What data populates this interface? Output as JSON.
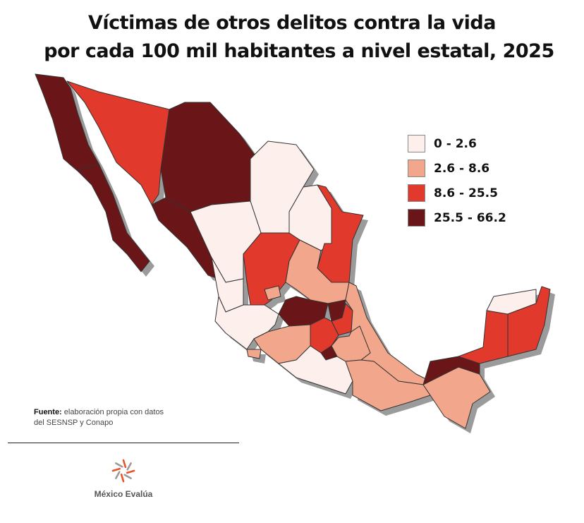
{
  "title": {
    "line1": "Víctimas de otros delitos contra la vida",
    "line2": "por cada 100 mil habitantes a nivel estatal, 2025"
  },
  "legend": {
    "bins": [
      {
        "label": "0 - 2.6",
        "color": "#fdf0ec"
      },
      {
        "label": "2.6 - 8.6",
        "color": "#f2a78c"
      },
      {
        "label": "8.6 - 25.5",
        "color": "#e2392d"
      },
      {
        "label": "25.5 - 66.2",
        "color": "#6a1517"
      }
    ]
  },
  "state_classes": {
    "baja-california": 3,
    "baja-california-sur": 3,
    "sonora": 2,
    "chihuahua": 3,
    "sinaloa": 3,
    "coahuila": 0,
    "nuevo-leon": 0,
    "tamaulipas": 2,
    "durango": 0,
    "zacatecas": 2,
    "san-luis-potosi": 1,
    "nayarit": 0,
    "jalisco": 0,
    "aguascalientes": 1,
    "guanajuato": 3,
    "queretaro": 3,
    "hidalgo": 2,
    "michoacan": 1,
    "colima": 1,
    "estado-de-mexico": 2,
    "ciudad-de-mexico": 0,
    "morelos": 3,
    "tlaxcala": 1,
    "guerrero": 0,
    "veracruz": 1,
    "puebla": 1,
    "oaxaca": 1,
    "chiapas": 1,
    "tabasco": 3,
    "campeche": 2,
    "yucatan": 0,
    "quintana-roo": 2
  },
  "source": {
    "label": "Fuente:",
    "text_line1": "elaboración propia con datos",
    "text_line2": "del SESNSP y Conapo"
  },
  "logo": {
    "text": "México Evalúa",
    "colors": [
      "#e8542a",
      "#9a9a9a"
    ]
  }
}
